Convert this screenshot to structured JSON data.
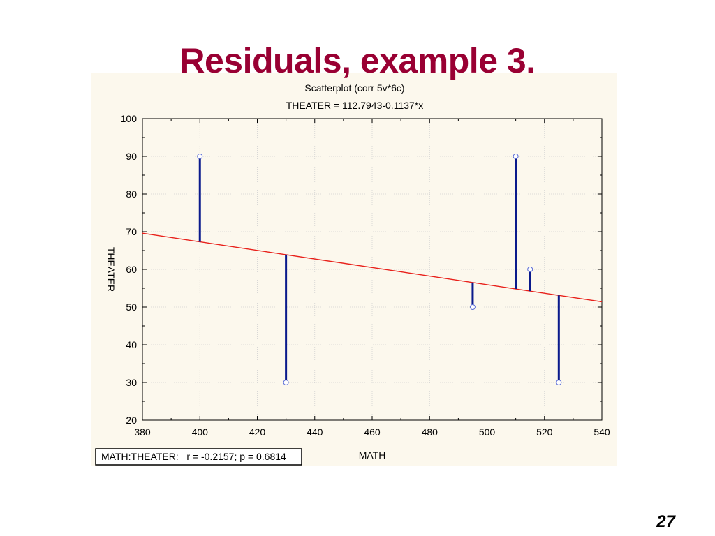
{
  "slide": {
    "title": "Residuals, example 3.",
    "page_number": "27"
  },
  "chart_data": {
    "type": "scatter",
    "title": "Scatterplot (corr 5v*6c)",
    "subtitle": "THEATER = 112.7943-0.1137*x",
    "xlabel": "MATH",
    "ylabel": "THEATER",
    "xlim": [
      380,
      540
    ],
    "ylim": [
      20,
      100
    ],
    "xticks": [
      380,
      400,
      420,
      440,
      460,
      480,
      500,
      520,
      540
    ],
    "yticks": [
      20,
      30,
      40,
      50,
      60,
      70,
      80,
      90,
      100
    ],
    "grid": true,
    "regression": {
      "intercept": 112.7943,
      "slope": -0.1137
    },
    "points": [
      {
        "x": 400,
        "y": 90
      },
      {
        "x": 430,
        "y": 30
      },
      {
        "x": 495,
        "y": 50
      },
      {
        "x": 510,
        "y": 90
      },
      {
        "x": 515,
        "y": 60
      },
      {
        "x": 525,
        "y": 30
      }
    ],
    "show_residuals": true,
    "annotation": "MATH:THEATER:   r = -0.2157; p = 0.6814",
    "colors": {
      "regression_line": "#e8201a",
      "residual": "#0a1a8c",
      "point_stroke": "#5b6dd6",
      "panel_bg": "#fcf8ed"
    }
  }
}
